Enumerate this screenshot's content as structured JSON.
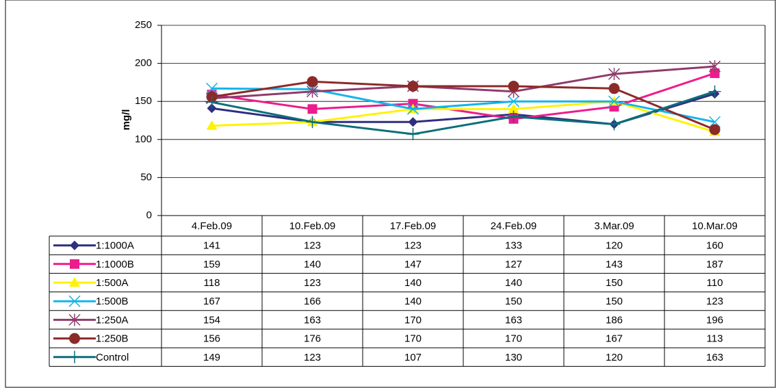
{
  "chart_data": {
    "type": "line",
    "y_label": "mg/l",
    "categories": [
      "4.Feb.09",
      "10.Feb.09",
      "17.Feb.09",
      "24.Feb.09",
      "3.Mar.09",
      "10.Mar.09"
    ],
    "ylim": [
      0,
      250
    ],
    "yticks": [
      0,
      50,
      100,
      150,
      200,
      250
    ],
    "grid": true,
    "series": [
      {
        "name": "1:1000A",
        "color": "#2e2f7f",
        "marker": "diamond",
        "values": [
          141,
          123,
          123,
          133,
          120,
          160
        ]
      },
      {
        "name": "1:1000B",
        "color": "#ec1c8c",
        "marker": "square",
        "values": [
          159,
          140,
          147,
          127,
          143,
          187
        ]
      },
      {
        "name": "1:500A",
        "color": "#fff200",
        "marker": "triangle",
        "values": [
          118,
          123,
          140,
          140,
          150,
          110
        ]
      },
      {
        "name": "1:500B",
        "color": "#13b5ea",
        "marker": "x",
        "values": [
          167,
          166,
          140,
          150,
          150,
          123
        ]
      },
      {
        "name": "1:250A",
        "color": "#8e3b6b",
        "marker": "star",
        "values": [
          154,
          163,
          170,
          163,
          186,
          196
        ]
      },
      {
        "name": "1:250B",
        "color": "#8c2a2a",
        "marker": "circle",
        "values": [
          156,
          176,
          170,
          170,
          167,
          113
        ]
      },
      {
        "name": "Control",
        "color": "#0b6e7a",
        "marker": "plus",
        "values": [
          149,
          123,
          107,
          130,
          120,
          163
        ]
      }
    ]
  }
}
